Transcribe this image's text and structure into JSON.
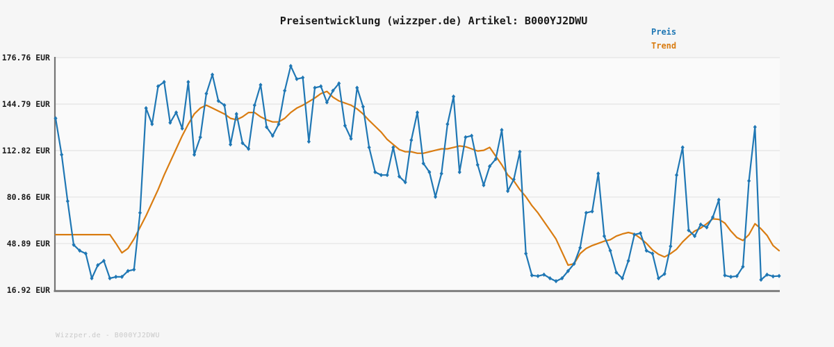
{
  "title": "Preisentwicklung (wizzper.de) Artikel: B000YJ2DWU",
  "footer": "Wizzper.de - B000YJ2DWU",
  "legend": {
    "items": [
      {
        "label": "Preis",
        "color": "#1f77b4"
      },
      {
        "label": "Trend",
        "color": "#d97c11"
      }
    ]
  },
  "colors": {
    "figure_background": "#f6f6f6",
    "plot_background": "#fafafa",
    "gridline": "#e3e3e3",
    "spine": "#757575",
    "tick_label": "#1a1a1a",
    "title_text": "#1a1a1a",
    "footer_text": "#c9c9c9",
    "price_line": "#1f77b4",
    "trend_line": "#d97c11"
  },
  "chart_data": {
    "type": "line",
    "title": "Preisentwicklung (wizzper.de) Artikel: B000YJ2DWU",
    "xlabel": "",
    "ylabel": "",
    "x_tick_labels": [],
    "ylim": [
      16.92,
      176.76
    ],
    "grid": true,
    "legend_position": "top-right",
    "yticks": [
      {
        "label": "176.76 EUR",
        "value": 176.76
      },
      {
        "label": "144.79 EUR",
        "value": 144.79
      },
      {
        "label": "112.82 EUR",
        "value": 112.82
      },
      {
        "label": "80.86 EUR",
        "value": 80.86
      },
      {
        "label": "48.89 EUR",
        "value": 48.89
      },
      {
        "label": "16.92 EUR",
        "value": 16.92
      }
    ],
    "series": [
      {
        "name": "Preis",
        "color": "#1f77b4",
        "marker": "diamond",
        "values": [
          135,
          110,
          78,
          48,
          44,
          42,
          25,
          34,
          37,
          25,
          26,
          26,
          30,
          31,
          70,
          142,
          131,
          157,
          160,
          132,
          139,
          128,
          160,
          110,
          122,
          152,
          165,
          147,
          144,
          117,
          138,
          118,
          114,
          144,
          158,
          129,
          123,
          131,
          154,
          171,
          162,
          163,
          119,
          156,
          157,
          146,
          154,
          159,
          130,
          121,
          156,
          143,
          115,
          98,
          96,
          96,
          115,
          95,
          91,
          120,
          139,
          104,
          98,
          81,
          97,
          131,
          150,
          98,
          122,
          123,
          103,
          89,
          102,
          107,
          127,
          85,
          93,
          112,
          42,
          27,
          26.5,
          27.5,
          25,
          23,
          25,
          30,
          35,
          46,
          70,
          71,
          97,
          54,
          44,
          29,
          25,
          37,
          55,
          56,
          44,
          42,
          25,
          28,
          47,
          96,
          115,
          58,
          54,
          62,
          60,
          67,
          79,
          27,
          26,
          26.5,
          33,
          92,
          129,
          24,
          27.5,
          26.3,
          26.6
        ]
      },
      {
        "name": "Trend",
        "color": "#d97c11",
        "marker": "none",
        "values": [
          55,
          55,
          55,
          55,
          55,
          55,
          55,
          55,
          55,
          55,
          49,
          42.5,
          45.5,
          52,
          60,
          68,
          77,
          86,
          96,
          105,
          114,
          123,
          131,
          138,
          142,
          144,
          142,
          140,
          138,
          135,
          134,
          136,
          139,
          139,
          136,
          134,
          132.5,
          132.5,
          135,
          139,
          142,
          144,
          146.5,
          149,
          152,
          153.5,
          149.5,
          147,
          145.5,
          144,
          141.5,
          138,
          133.5,
          129.5,
          125.5,
          120.5,
          117,
          113.5,
          112,
          112,
          111,
          111,
          112,
          113,
          114,
          114,
          115,
          116,
          115.5,
          114,
          112.5,
          113,
          115,
          109,
          103,
          96,
          92,
          86,
          81,
          75,
          70,
          64,
          58,
          52,
          43,
          34,
          35,
          42,
          45.5,
          47.5,
          49,
          50.5,
          51.5,
          54,
          55.5,
          56.5,
          55.5,
          52.5,
          49,
          44.5,
          41.5,
          39.7,
          42,
          45,
          50,
          54,
          57.5,
          59.5,
          62.5,
          65.9,
          65.5,
          63,
          57.5,
          53,
          51,
          55,
          62.5,
          59,
          54.5,
          47.5,
          44
        ]
      }
    ]
  }
}
